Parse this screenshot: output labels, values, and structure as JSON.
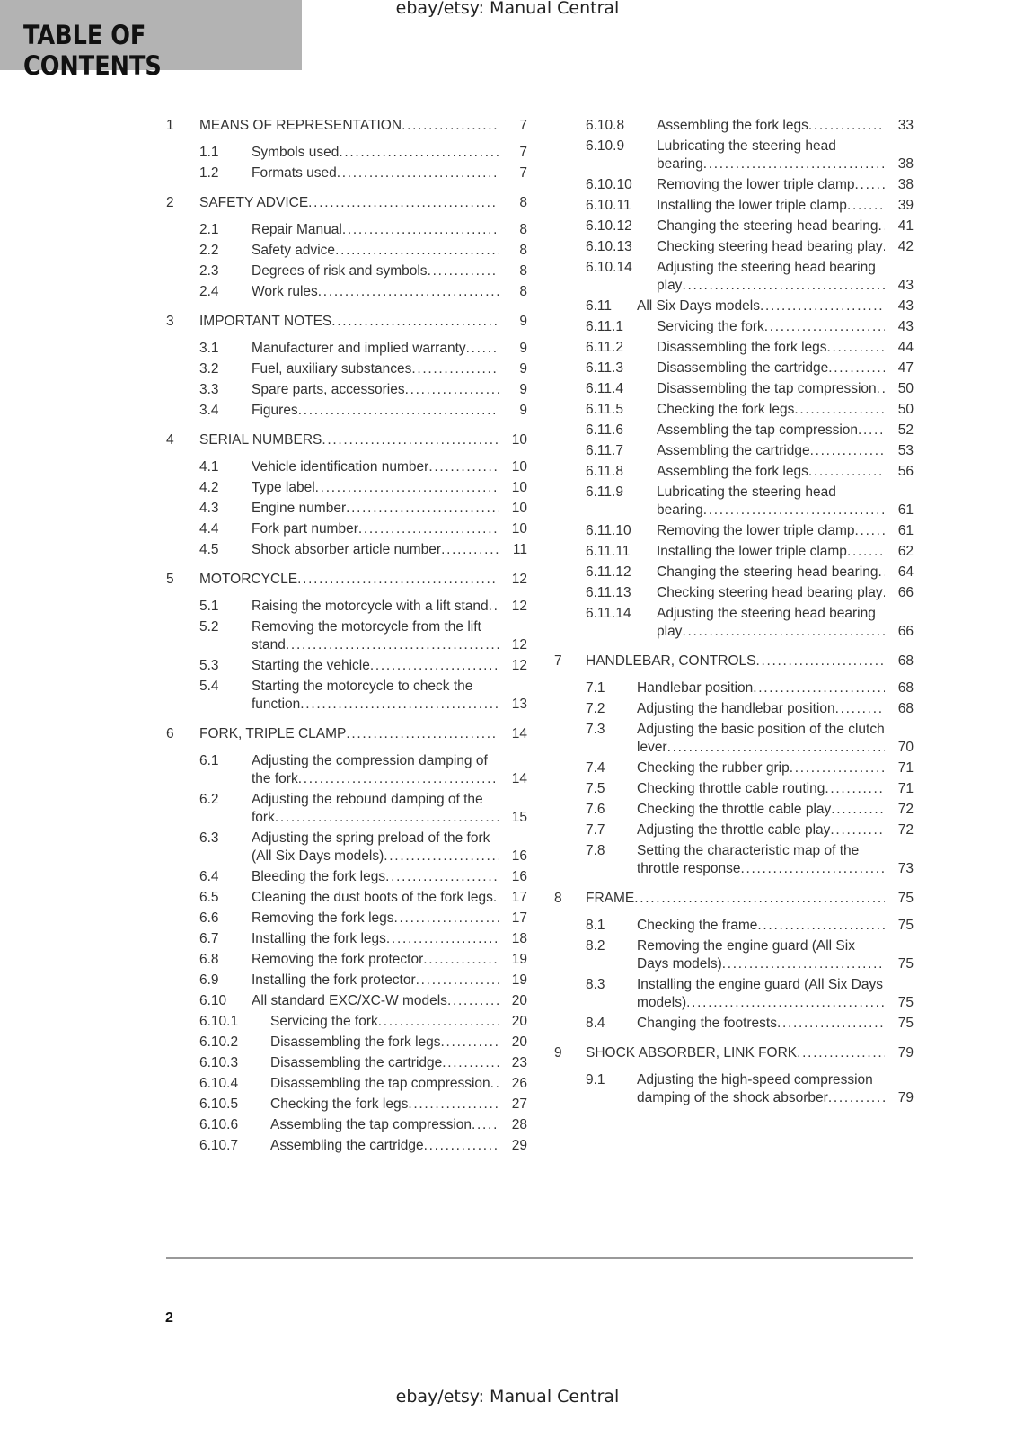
{
  "watermark_top": "ebay/etsy: Manual Central",
  "header": {
    "title": "TABLE OF CONTENTS"
  },
  "columns": [
    {
      "entries": [
        [
          "1",
          "MEANS OF REPRESENTATION",
          7
        ],
        [
          "1.1",
          "Symbols used",
          7
        ],
        [
          "1.2",
          "Formats used",
          7
        ],
        [
          "2",
          "SAFETY ADVICE",
          8
        ],
        [
          "2.1",
          "Repair Manual",
          8
        ],
        [
          "2.2",
          "Safety advice",
          8
        ],
        [
          "2.3",
          "Degrees of risk and symbols",
          8
        ],
        [
          "2.4",
          "Work rules",
          8
        ],
        [
          "3",
          "IMPORTANT NOTES",
          9
        ],
        [
          "3.1",
          "Manufacturer and implied warranty",
          9
        ],
        [
          "3.2",
          "Fuel, auxiliary substances",
          9
        ],
        [
          "3.3",
          "Spare parts, accessories",
          9
        ],
        [
          "3.4",
          "Figures",
          9
        ],
        [
          "4",
          "SERIAL NUMBERS",
          10
        ],
        [
          "4.1",
          "Vehicle identification number",
          10
        ],
        [
          "4.2",
          "Type label",
          10
        ],
        [
          "4.3",
          "Engine number",
          10
        ],
        [
          "4.4",
          "Fork part number",
          10
        ],
        [
          "4.5",
          "Shock absorber article number",
          11
        ],
        [
          "5",
          "MOTORCYCLE",
          12
        ],
        [
          "5.1",
          "Raising the motorcycle with a lift stand",
          12
        ],
        [
          "5.2",
          "Removing the motorcycle from the lift stand",
          12
        ],
        [
          "5.3",
          "Starting the vehicle",
          12
        ],
        [
          "5.4",
          "Starting the motorcycle to check the function",
          13
        ],
        [
          "6",
          "FORK, TRIPLE CLAMP",
          14
        ],
        [
          "6.1",
          "Adjusting the compression damping of the fork",
          14
        ],
        [
          "6.2",
          "Adjusting the rebound damping of the fork",
          15
        ],
        [
          "6.3",
          "Adjusting the spring preload of the fork (All Six Days models)",
          16
        ],
        [
          "6.4",
          "Bleeding the fork legs",
          16
        ],
        [
          "6.5",
          "Cleaning the dust boots of the fork legs",
          17
        ],
        [
          "6.6",
          "Removing the fork legs",
          17
        ],
        [
          "6.7",
          "Installing the fork legs",
          18
        ],
        [
          "6.8",
          "Removing the fork protector",
          19
        ],
        [
          "6.9",
          "Installing the fork protector",
          19
        ],
        [
          "6.10",
          "All standard EXC/XC-W models",
          20
        ],
        [
          "6.10.1",
          "Servicing the fork",
          20
        ],
        [
          "6.10.2",
          "Disassembling the fork legs",
          20
        ],
        [
          "6.10.3",
          "Disassembling the cartridge",
          23
        ],
        [
          "6.10.4",
          "Disassembling the tap compression",
          26
        ],
        [
          "6.10.5",
          "Checking the fork legs",
          27
        ],
        [
          "6.10.6",
          "Assembling the tap compression",
          28
        ],
        [
          "6.10.7",
          "Assembling the cartridge",
          29
        ]
      ]
    },
    {
      "entries": [
        [
          "6.10.8",
          "Assembling the fork legs",
          33
        ],
        [
          "6.10.9",
          "Lubricating the steering head bearing",
          38
        ],
        [
          "6.10.10",
          "Removing the lower triple clamp",
          38
        ],
        [
          "6.10.11",
          "Installing the lower triple clamp",
          39
        ],
        [
          "6.10.12",
          "Changing the steering head bearing",
          41
        ],
        [
          "6.10.13",
          "Checking steering head bearing play",
          42
        ],
        [
          "6.10.14",
          "Adjusting the steering head bearing play",
          43
        ],
        [
          "6.11",
          "All Six Days models",
          43
        ],
        [
          "6.11.1",
          "Servicing the fork",
          43
        ],
        [
          "6.11.2",
          "Disassembling the fork legs",
          44
        ],
        [
          "6.11.3",
          "Disassembling the cartridge",
          47
        ],
        [
          "6.11.4",
          "Disassembling the tap compression",
          50
        ],
        [
          "6.11.5",
          "Checking the fork legs",
          50
        ],
        [
          "6.11.6",
          "Assembling the tap compression",
          52
        ],
        [
          "6.11.7",
          "Assembling the cartridge",
          53
        ],
        [
          "6.11.8",
          "Assembling the fork legs",
          56
        ],
        [
          "6.11.9",
          "Lubricating the steering head bearing",
          61
        ],
        [
          "6.11.10",
          "Removing the lower triple clamp",
          61
        ],
        [
          "6.11.11",
          "Installing the lower triple clamp",
          62
        ],
        [
          "6.11.12",
          "Changing the steering head bearing",
          64
        ],
        [
          "6.11.13",
          "Checking steering head bearing play",
          66
        ],
        [
          "6.11.14",
          "Adjusting the steering head bearing play",
          66
        ],
        [
          "7",
          "HANDLEBAR, CONTROLS",
          68
        ],
        [
          "7.1",
          "Handlebar position",
          68
        ],
        [
          "7.2",
          "Adjusting the handlebar position",
          68
        ],
        [
          "7.3",
          "Adjusting the basic position of the clutch lever",
          70
        ],
        [
          "7.4",
          "Checking the rubber grip",
          71
        ],
        [
          "7.5",
          "Checking throttle cable routing",
          71
        ],
        [
          "7.6",
          "Checking the throttle cable play",
          72
        ],
        [
          "7.7",
          "Adjusting the throttle cable play",
          72
        ],
        [
          "7.8",
          "Setting the characteristic map of the throttle response",
          73
        ],
        [
          "8",
          "FRAME",
          75
        ],
        [
          "8.1",
          "Checking the frame",
          75
        ],
        [
          "8.2",
          "Removing the engine guard (All Six Days models)",
          75
        ],
        [
          "8.3",
          "Installing the engine guard (All Six Days models)",
          75
        ],
        [
          "8.4",
          "Changing the footrests",
          75
        ],
        [
          "9",
          "SHOCK ABSORBER, LINK FORK",
          79
        ],
        [
          "9.1",
          "Adjusting the high-speed compression damping of the shock absorber",
          79
        ]
      ]
    }
  ],
  "page_number": 2,
  "watermark_bottom": "ebay/etsy: Manual Central"
}
